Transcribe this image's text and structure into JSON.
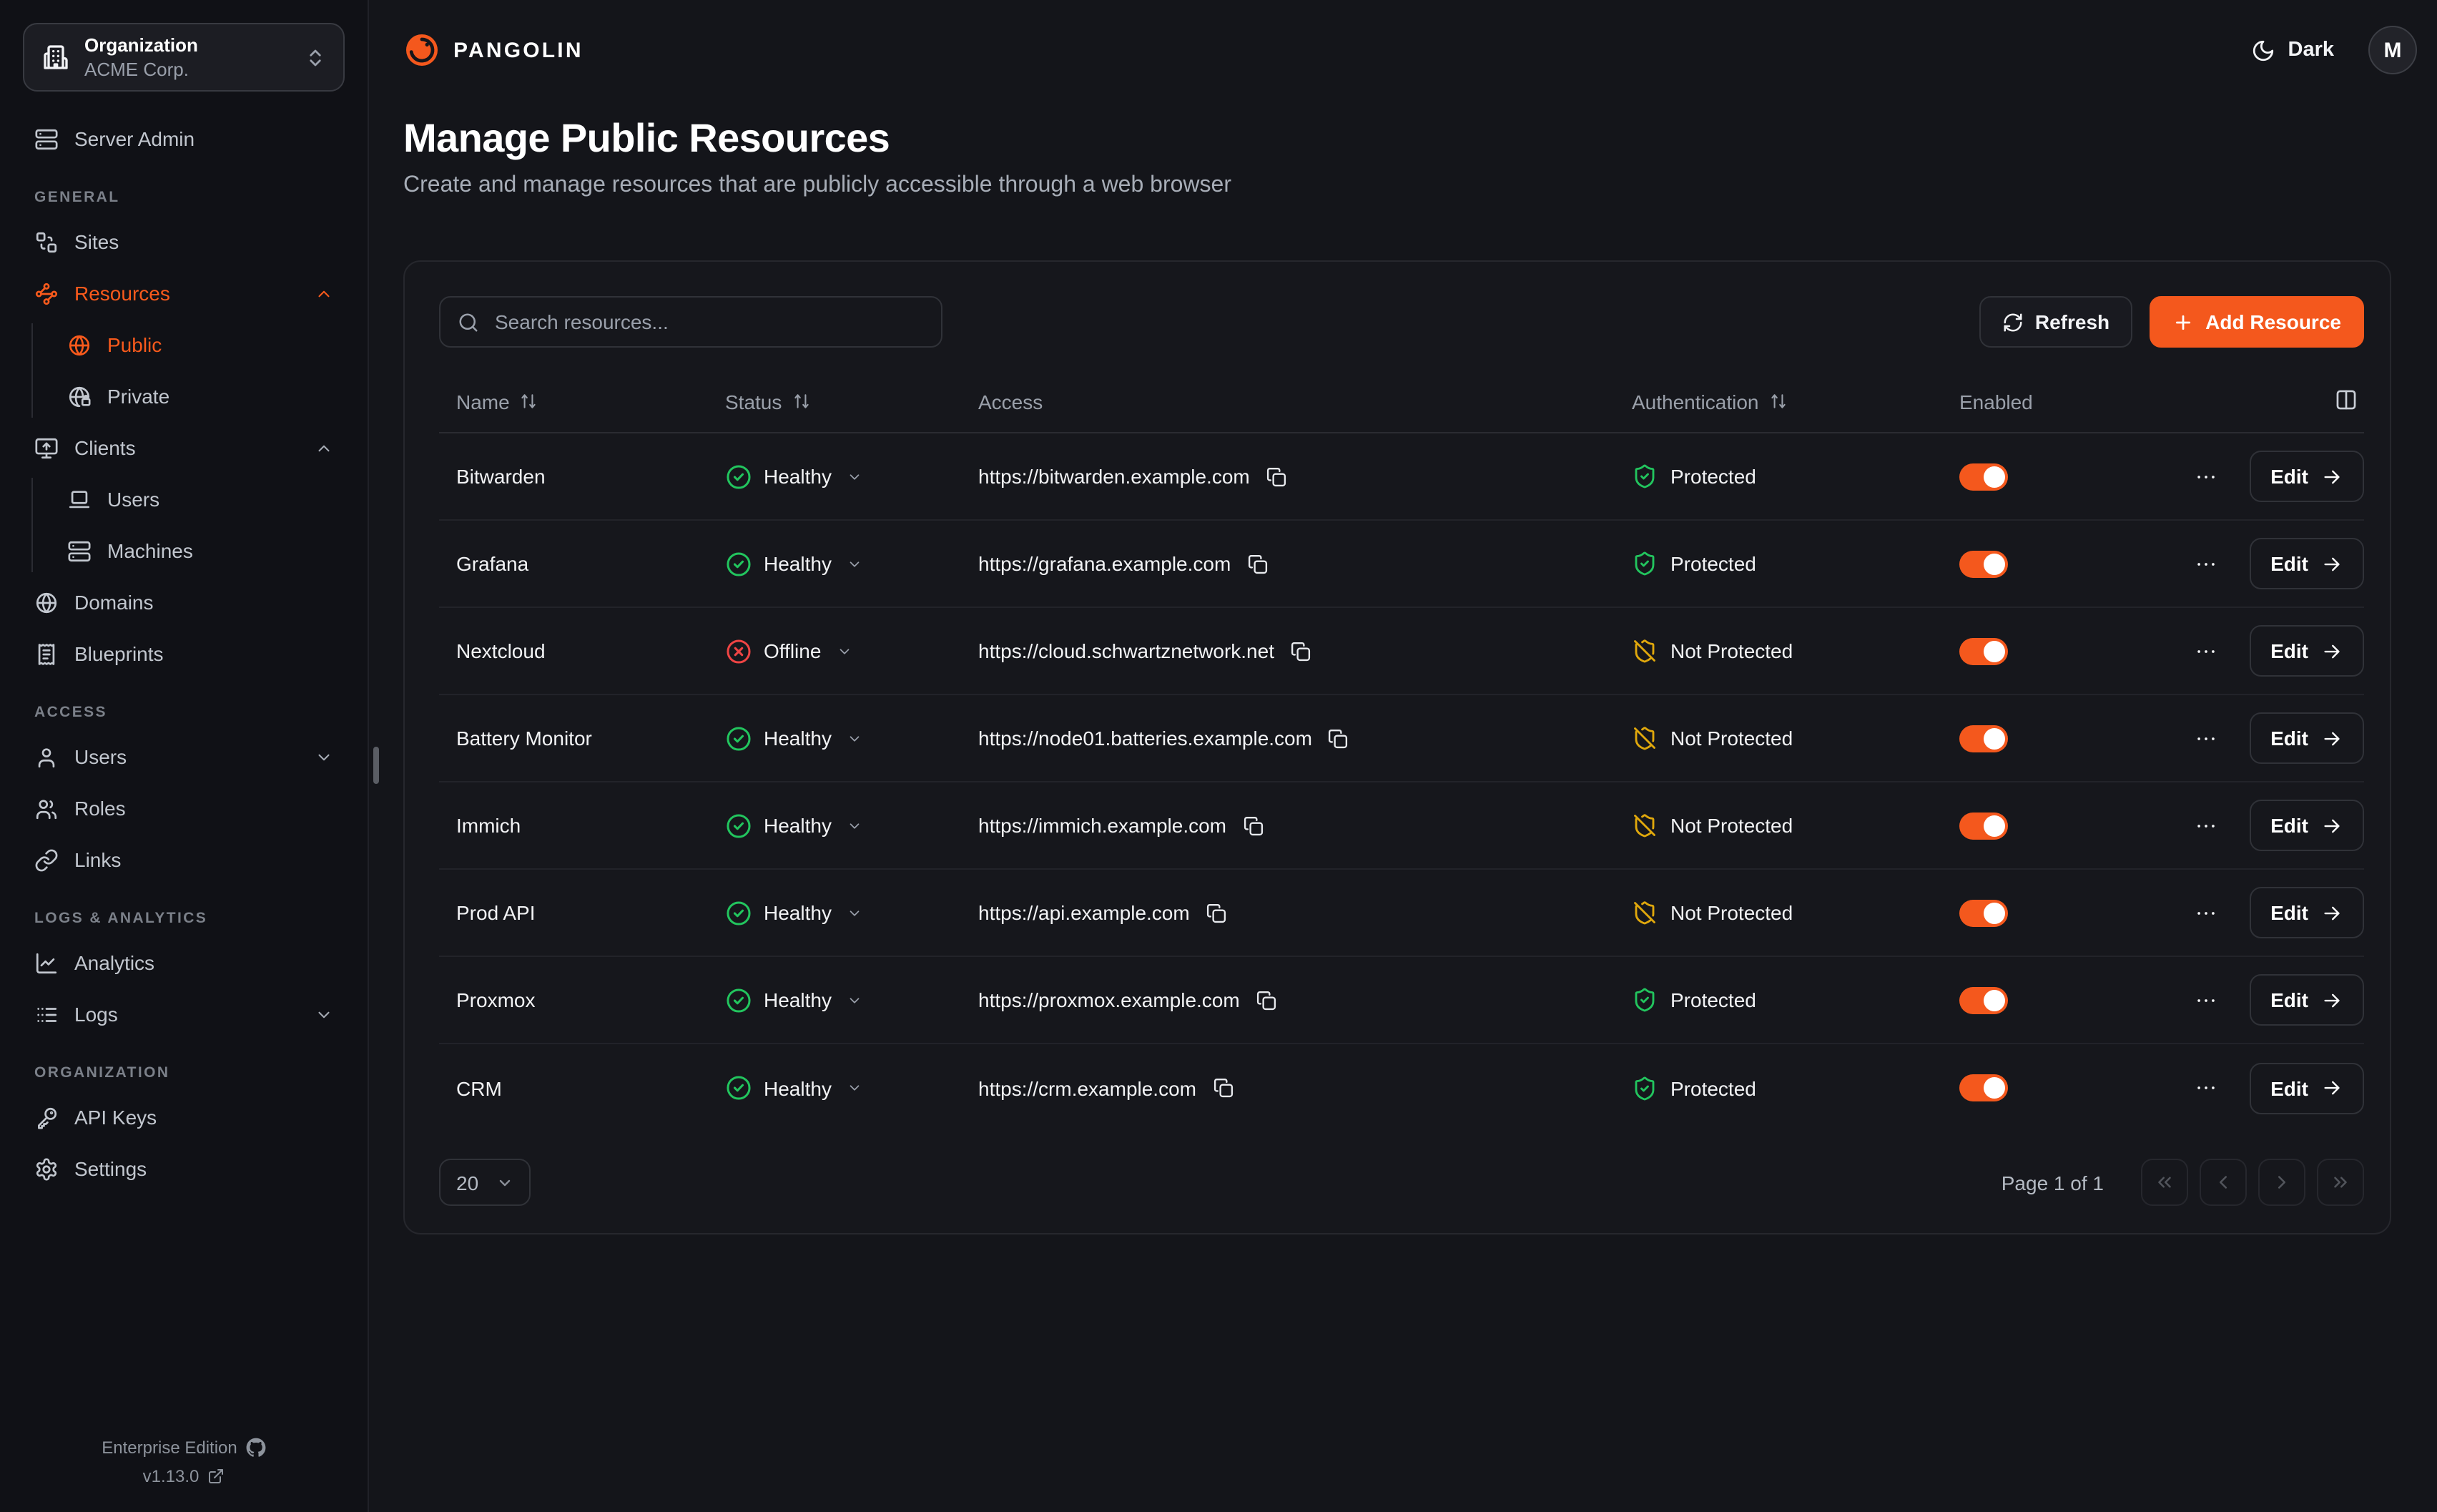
{
  "colors": {
    "accent": "#f4581d",
    "healthy_green": "#22c55e",
    "offline_red": "#ef4444",
    "protected_green": "#22c55e",
    "not_protected_amber": "#e0a80c"
  },
  "org_selector": {
    "label": "Organization",
    "value": "ACME Corp."
  },
  "sidebar": {
    "sections": [
      {
        "label": "",
        "items": [
          {
            "icon": "server",
            "label": "Server Admin"
          }
        ]
      },
      {
        "label": "GENERAL",
        "items": [
          {
            "icon": "sites",
            "label": "Sites"
          },
          {
            "icon": "waypoints",
            "label": "Resources",
            "active": true,
            "chevron": "up",
            "children": [
              {
                "icon": "globe",
                "label": "Public",
                "active": true
              },
              {
                "icon": "globe-lock",
                "label": "Private"
              }
            ]
          },
          {
            "icon": "monitor-up",
            "label": "Clients",
            "chevron": "up",
            "children": [
              {
                "icon": "laptop",
                "label": "Users"
              },
              {
                "icon": "server",
                "label": "Machines"
              }
            ]
          },
          {
            "icon": "globe",
            "label": "Domains"
          },
          {
            "icon": "receipt",
            "label": "Blueprints"
          }
        ]
      },
      {
        "label": "ACCESS",
        "items": [
          {
            "icon": "user",
            "label": "Users",
            "chevron": "down"
          },
          {
            "icon": "users",
            "label": "Roles"
          },
          {
            "icon": "link",
            "label": "Links"
          }
        ]
      },
      {
        "label": "LOGS & ANALYTICS",
        "items": [
          {
            "icon": "chart-line",
            "label": "Analytics"
          },
          {
            "icon": "list",
            "label": "Logs",
            "chevron": "down"
          }
        ]
      },
      {
        "label": "ORGANIZATION",
        "items": [
          {
            "icon": "key",
            "label": "API Keys"
          },
          {
            "icon": "settings",
            "label": "Settings"
          }
        ]
      }
    ],
    "footer": {
      "edition": "Enterprise Edition",
      "version": "v1.13.0"
    }
  },
  "brand": {
    "name": "PANGOLIN"
  },
  "header": {
    "theme_label": "Dark",
    "avatar_initial": "M"
  },
  "page": {
    "title": "Manage Public Resources",
    "subtitle": "Create and manage resources that are publicly accessible through a web browser"
  },
  "toolbar": {
    "search_placeholder": "Search resources...",
    "refresh_label": "Refresh",
    "add_label": "Add Resource"
  },
  "table": {
    "columns": [
      {
        "label": "Name",
        "sortable": true
      },
      {
        "label": "Status",
        "sortable": true
      },
      {
        "label": "Access",
        "sortable": false
      },
      {
        "label": "Authentication",
        "sortable": true
      },
      {
        "label": "Enabled",
        "sortable": false
      }
    ],
    "edit_label": "Edit",
    "rows": [
      {
        "name": "Bitwarden",
        "status": "Healthy",
        "url": "https://bitwarden.example.com",
        "auth": "Protected",
        "enabled": true
      },
      {
        "name": "Grafana",
        "status": "Healthy",
        "url": "https://grafana.example.com",
        "auth": "Protected",
        "enabled": true
      },
      {
        "name": "Nextcloud",
        "status": "Offline",
        "url": "https://cloud.schwartznetwork.net",
        "auth": "Not Protected",
        "enabled": true
      },
      {
        "name": "Battery Monitor",
        "status": "Healthy",
        "url": "https://node01.batteries.example.com",
        "auth": "Not Protected",
        "enabled": true
      },
      {
        "name": "Immich",
        "status": "Healthy",
        "url": "https://immich.example.com",
        "auth": "Not Protected",
        "enabled": true
      },
      {
        "name": "Prod API",
        "status": "Healthy",
        "url": "https://api.example.com",
        "auth": "Not Protected",
        "enabled": true
      },
      {
        "name": "Proxmox",
        "status": "Healthy",
        "url": "https://proxmox.example.com",
        "auth": "Protected",
        "enabled": true
      },
      {
        "name": "CRM",
        "status": "Healthy",
        "url": "https://crm.example.com",
        "auth": "Protected",
        "enabled": true
      }
    ]
  },
  "pagination": {
    "page_size": "20",
    "page_label": "Page 1 of 1"
  }
}
